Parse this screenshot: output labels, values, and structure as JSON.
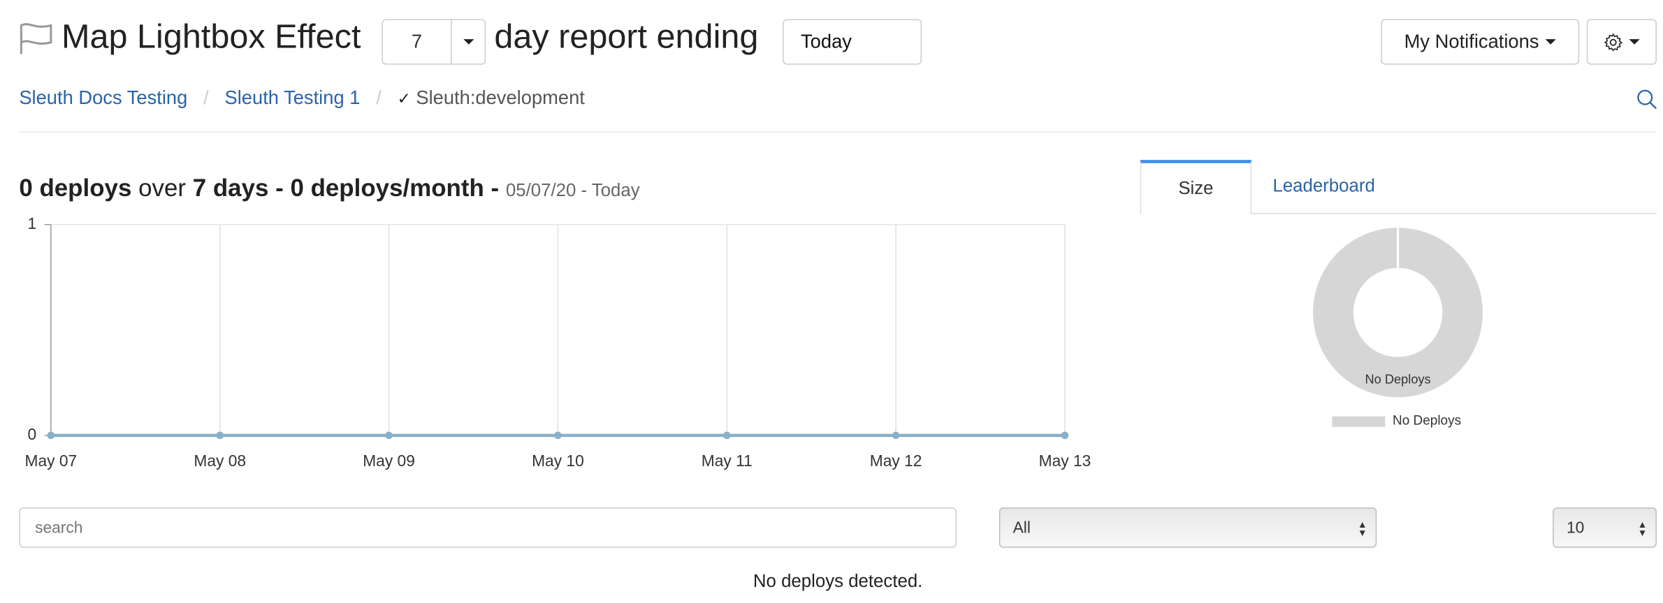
{
  "header": {
    "title": "Map Lightbox Effect",
    "days_value": "7",
    "middle_text": "day report ending",
    "end_date_value": "Today",
    "notifications_label": "My Notifications",
    "icons": [
      "flag-icon",
      "gear-icon",
      "search-icon"
    ]
  },
  "breadcrumb": {
    "items": [
      "Sleuth Docs Testing",
      "Sleuth Testing 1"
    ],
    "current": "Sleuth:development",
    "separator": "/"
  },
  "summary": {
    "deploys": "0 deploys",
    "over": "over",
    "days": "7 days",
    "dash": "-",
    "per_month": "0 deploys/month",
    "range": "05/07/20 - Today"
  },
  "tabs": [
    {
      "label": "Size",
      "active": true
    },
    {
      "label": "Leaderboard",
      "active": false
    }
  ],
  "chart_data": [
    {
      "type": "line",
      "categories": [
        "May 07",
        "May 08",
        "May 09",
        "May 10",
        "May 11",
        "May 12",
        "May 13"
      ],
      "values": [
        0,
        0,
        0,
        0,
        0,
        0,
        0
      ],
      "yticks": [
        "0",
        "1"
      ],
      "ylim": [
        0,
        1
      ],
      "grid": "vertical",
      "color": "#8ab0c8"
    },
    {
      "type": "pie",
      "donut": true,
      "labels": [
        "No Deploys"
      ],
      "values": [
        1
      ],
      "color": "#d6d6d6",
      "legend": "bottom"
    }
  ],
  "filters": {
    "search_placeholder": "search",
    "type_value": "All",
    "page_size_value": "10"
  },
  "empty_message": "No deploys detected.",
  "colors": {
    "link": "#2a63a8",
    "tab_active": "#3a8ee6"
  }
}
